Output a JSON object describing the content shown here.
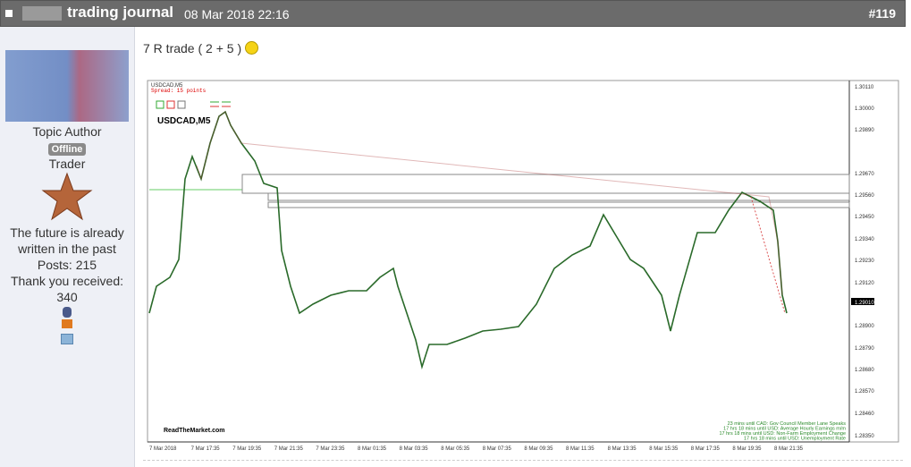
{
  "header": {
    "title": "trading journal",
    "date": "08 Mar 2018 22:16",
    "post_number": "#119"
  },
  "author": {
    "role": "Topic Author",
    "status": "Offline",
    "rank": "Trader",
    "signature": "The future is already written in the past",
    "posts": "Posts: 215",
    "thanks": "Thank you received: 340"
  },
  "post": {
    "text": "7 R trade ( 2 + 5 )"
  },
  "chart_image": {
    "symbol_small": "USDCAD,M5",
    "spread": "Spread: 15 points",
    "symbol": "USDCAD,M5",
    "price_labels": [
      "1.30110",
      "1.30000",
      "1.29890",
      "1.29670",
      "1.29560",
      "1.29450",
      "1.29340",
      "1.29230",
      "1.29120",
      "1.29010",
      "1.28900",
      "1.28790",
      "1.28680",
      "1.28570",
      "1.28460",
      "1.28350"
    ],
    "time_labels": [
      "7 Mar 2018",
      "7 Mar 17:35",
      "7 Mar 19:35",
      "7 Mar 21:35",
      "7 Mar 23:35",
      "8 Mar 01:35",
      "8 Mar 03:35",
      "8 Mar 05:35",
      "8 Mar 07:35",
      "8 Mar 09:35",
      "8 Mar 11:35",
      "8 Mar 13:35",
      "8 Mar 15:35",
      "8 Mar 17:35",
      "8 Mar 19:35",
      "8 Mar 21:35"
    ],
    "watermark": "ReadTheMarket.com",
    "news": [
      "23 mins until CAD: Gov Council Member Lane Speaks",
      "17 hrs 18 mins until USD: Average Hourly Earnings m/m",
      "17 hrs 18 mins until USD: Non-Farm Employment Change",
      "17 hrs 18 mins until USD: Unemployment Rate"
    ]
  }
}
